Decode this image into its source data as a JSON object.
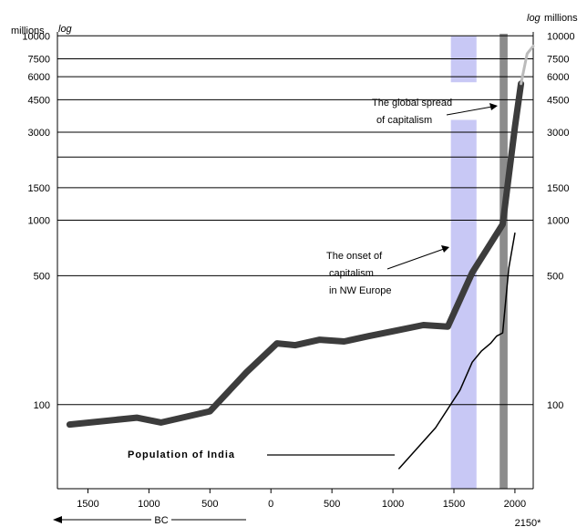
{
  "chart_data": {
    "type": "line",
    "y_scale": "log",
    "xlim": [
      -1750,
      2150
    ],
    "ylim": [
      35,
      10500
    ],
    "y_unit_left": "millions",
    "y_scale_label_left": "log",
    "y_unit_right": "millions",
    "y_scale_label_right": "log",
    "y_ticks": [
      {
        "value": 10000,
        "label": "10000"
      },
      {
        "value": 7500,
        "label": "7500"
      },
      {
        "value": 6000,
        "label": "6000"
      },
      {
        "value": 4500,
        "label": "4500"
      },
      {
        "value": 3000,
        "label": "3000"
      },
      {
        "value": 2200,
        "label": ""
      },
      {
        "value": 1500,
        "label": "1500"
      },
      {
        "value": 1000,
        "label": "1000"
      },
      {
        "value": 500,
        "label": "500"
      },
      {
        "value": 100,
        "label": "100"
      }
    ],
    "x_ticks": [
      {
        "value": -1500,
        "label": "1500"
      },
      {
        "value": -1000,
        "label": "1000"
      },
      {
        "value": -500,
        "label": "500"
      },
      {
        "value": 0,
        "label": "0"
      },
      {
        "value": 500,
        "label": "500"
      },
      {
        "value": 1000,
        "label": "1000"
      },
      {
        "value": 1500,
        "label": "1500"
      },
      {
        "value": 2000,
        "label": "2000"
      }
    ],
    "x_extra_label": "2150*",
    "bc_label": "BC",
    "grid": true,
    "bands": [
      {
        "from": 1475,
        "to": 1685,
        "color": "#c8c8f5",
        "gap_from_value": 3500,
        "gap_to_value": 5600
      },
      {
        "from": 1875,
        "to": 1940,
        "color": "#8c8c8c"
      }
    ],
    "series": [
      {
        "color": "#3c3c3c",
        "x": [
          -1650,
          -1100,
          -900,
          -500,
          -200,
          50,
          200,
          400,
          600,
          800,
          1000,
          1250,
          1450,
          1650,
          1900,
          2000,
          2050
        ],
        "y": [
          78,
          85,
          80,
          92,
          150,
          215,
          210,
          225,
          220,
          235,
          250,
          270,
          265,
          520,
          950,
          3200,
          5500
        ]
      },
      {
        "color": "#bbbbbb",
        "x": [
          2050,
          2100,
          2150
        ],
        "y": [
          5500,
          8000,
          8800
        ]
      },
      {
        "color": "#000000",
        "x": [
          1050,
          1350,
          1550,
          1650,
          1725,
          1800,
          1850,
          1900,
          1950,
          2000
        ],
        "y": [
          45,
          75,
          120,
          170,
          195,
          215,
          235,
          245,
          550,
          850
        ]
      }
    ],
    "annotations": [
      {
        "id": "global",
        "lines": [
          "The global spread",
          "of capitalism"
        ]
      },
      {
        "id": "onset",
        "lines": [
          "The onset of",
          "capitalism",
          "in NW Europe"
        ]
      },
      {
        "id": "india",
        "lines": [
          "Population of India"
        ]
      }
    ]
  }
}
